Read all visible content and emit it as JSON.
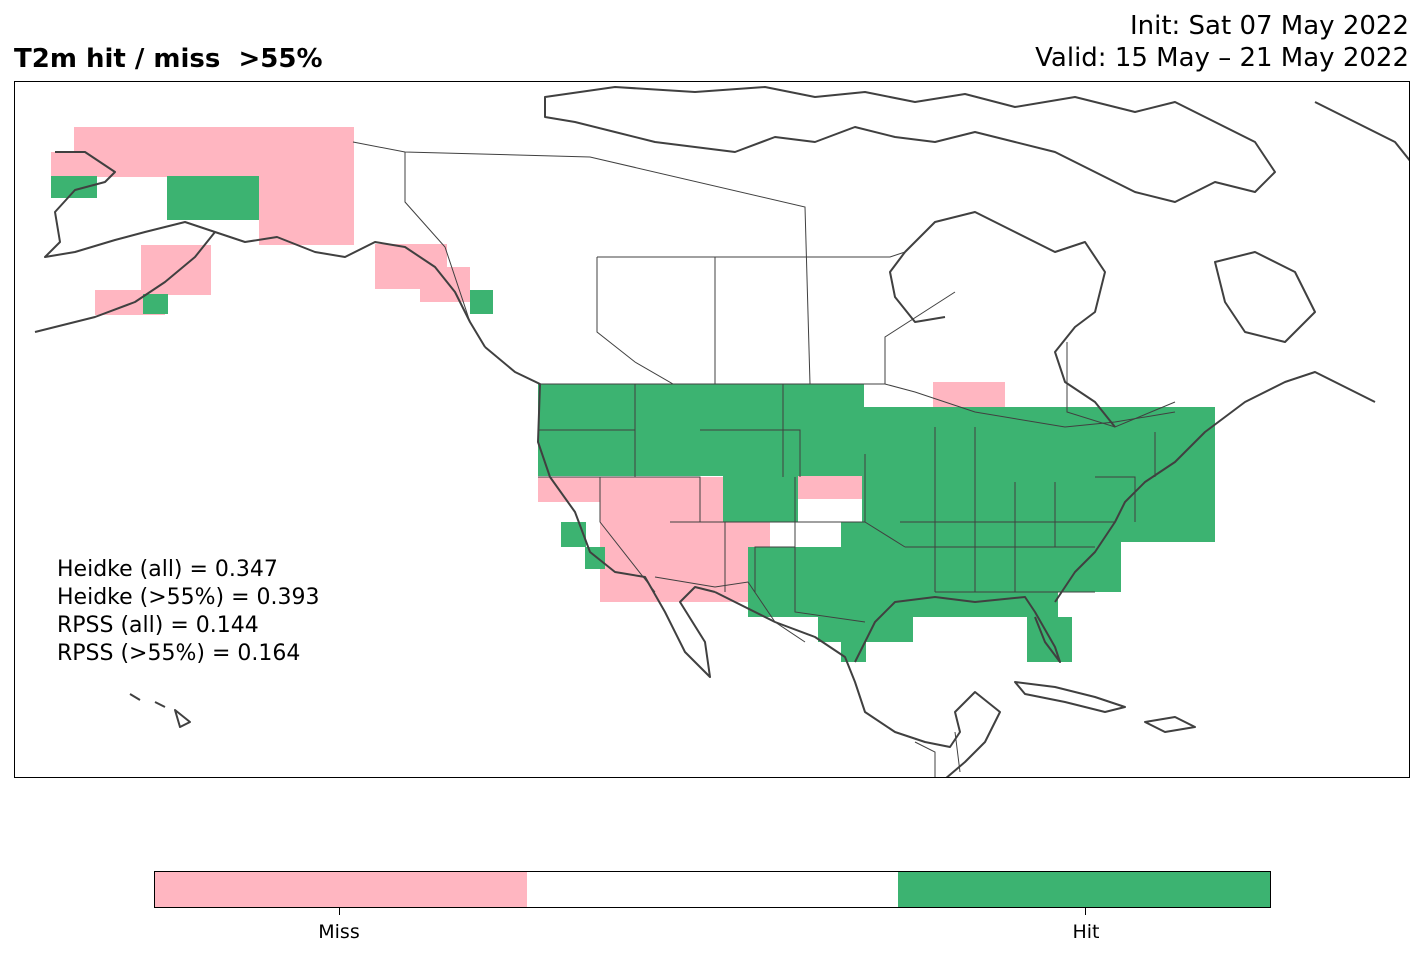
{
  "title": {
    "left": "T2m hit / miss  >55%",
    "init": "Init: Sat 07 May 2022",
    "valid": "Valid: 15 May – 21 May 2022"
  },
  "stats": [
    "Heidke (all) = 0.347",
    "Heidke (>55%) = 0.393",
    "RPSS (all) = 0.144",
    "RPSS (>55%) = 0.164"
  ],
  "legend": {
    "miss_label": "Miss",
    "hit_label": "Hit",
    "miss_color": "#ffb6c1",
    "neutral_color": "#ffffff",
    "hit_color": "#3cb371"
  },
  "map": {
    "region": "North America",
    "coastline_color": "#404040",
    "border_color": "#404040"
  }
}
